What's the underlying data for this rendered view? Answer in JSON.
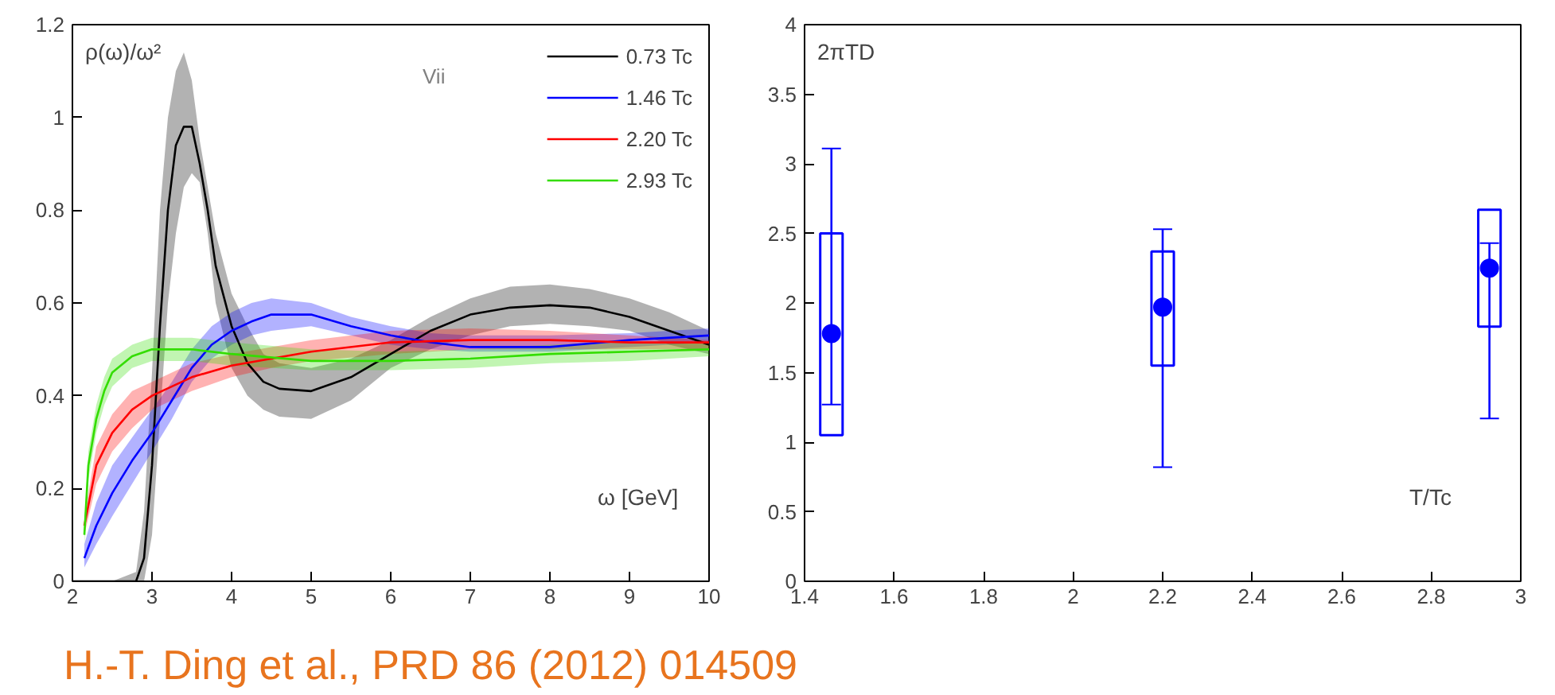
{
  "chart_data": [
    {
      "type": "line",
      "xlabel": "ω [GeV]",
      "ylabel": "ρ(ω)/ω²",
      "annotations": [
        "Vii",
        "H.-T. Ding et al., PRD 86 (2012) 014509"
      ],
      "xlim": [
        2,
        10
      ],
      "ylim": [
        0,
        1.2
      ],
      "xticks": [
        2,
        3,
        4,
        5,
        6,
        7,
        8,
        9,
        10
      ],
      "yticks": [
        0,
        0.2,
        0.4,
        0.6,
        0.8,
        1,
        1.2
      ],
      "legend": "top right",
      "grid": false,
      "series": [
        {
          "name": "0.73 Tc",
          "color": "#000000",
          "x": [
            2.0,
            2.5,
            2.8,
            2.9,
            3.0,
            3.1,
            3.2,
            3.3,
            3.4,
            3.5,
            3.6,
            3.7,
            3.8,
            4.0,
            4.2,
            4.4,
            4.6,
            5.0,
            5.5,
            6.0,
            6.5,
            7.0,
            7.5,
            8.0,
            8.5,
            9.0,
            9.5,
            10
          ],
          "values": [
            0,
            0,
            0,
            0.05,
            0.25,
            0.55,
            0.8,
            0.94,
            0.98,
            0.98,
            0.9,
            0.8,
            0.68,
            0.55,
            0.47,
            0.43,
            0.415,
            0.41,
            0.44,
            0.49,
            0.54,
            0.575,
            0.59,
            0.595,
            0.59,
            0.57,
            0.54,
            0.51
          ],
          "lower": [
            0,
            0,
            0,
            0,
            0.1,
            0.35,
            0.6,
            0.75,
            0.85,
            0.88,
            0.86,
            0.75,
            0.6,
            0.46,
            0.4,
            0.37,
            0.355,
            0.35,
            0.39,
            0.46,
            0.5,
            0.53,
            0.55,
            0.555,
            0.55,
            0.54,
            0.51,
            0.49
          ],
          "upper": [
            0,
            0,
            0.02,
            0.15,
            0.45,
            0.8,
            1.0,
            1.1,
            1.14,
            1.08,
            0.95,
            0.85,
            0.75,
            0.62,
            0.55,
            0.49,
            0.47,
            0.46,
            0.48,
            0.52,
            0.57,
            0.61,
            0.635,
            0.64,
            0.63,
            0.61,
            0.58,
            0.54
          ]
        },
        {
          "name": "1.46 Tc",
          "color": "#0000ff",
          "x": [
            2.15,
            2.3,
            2.5,
            2.75,
            3.0,
            3.25,
            3.5,
            3.75,
            4.0,
            4.25,
            4.5,
            5.0,
            5.5,
            6.0,
            6.5,
            7.0,
            8.0,
            9.0,
            10
          ],
          "values": [
            0.05,
            0.12,
            0.19,
            0.26,
            0.32,
            0.39,
            0.46,
            0.51,
            0.54,
            0.56,
            0.575,
            0.575,
            0.55,
            0.53,
            0.515,
            0.505,
            0.505,
            0.52,
            0.53
          ],
          "lower": [
            0.03,
            0.08,
            0.14,
            0.21,
            0.28,
            0.35,
            0.43,
            0.48,
            0.51,
            0.53,
            0.54,
            0.55,
            0.53,
            0.51,
            0.5,
            0.495,
            0.495,
            0.505,
            0.515
          ],
          "upper": [
            0.08,
            0.17,
            0.25,
            0.31,
            0.37,
            0.43,
            0.5,
            0.55,
            0.58,
            0.6,
            0.61,
            0.6,
            0.57,
            0.55,
            0.535,
            0.53,
            0.53,
            0.535,
            0.545
          ]
        },
        {
          "name": "2.20 Tc",
          "color": "#ff0000",
          "x": [
            2.15,
            2.3,
            2.5,
            2.75,
            3.0,
            3.5,
            4.0,
            4.5,
            5.0,
            6.0,
            7.0,
            8.0,
            9.0,
            10
          ],
          "values": [
            0.12,
            0.25,
            0.32,
            0.37,
            0.4,
            0.44,
            0.465,
            0.48,
            0.495,
            0.515,
            0.52,
            0.52,
            0.515,
            0.515
          ],
          "lower": [
            0.1,
            0.21,
            0.28,
            0.33,
            0.37,
            0.41,
            0.44,
            0.46,
            0.475,
            0.49,
            0.5,
            0.5,
            0.5,
            0.5
          ],
          "upper": [
            0.14,
            0.29,
            0.36,
            0.41,
            0.43,
            0.47,
            0.49,
            0.505,
            0.52,
            0.54,
            0.545,
            0.54,
            0.53,
            0.52
          ]
        },
        {
          "name": "2.93 Tc",
          "color": "#33dd00",
          "x": [
            2.15,
            2.2,
            2.3,
            2.4,
            2.5,
            2.75,
            3.0,
            3.5,
            4.0,
            5.0,
            6.0,
            7.0,
            8.0,
            9.0,
            10
          ],
          "values": [
            0.1,
            0.25,
            0.35,
            0.41,
            0.45,
            0.485,
            0.5,
            0.5,
            0.49,
            0.475,
            0.475,
            0.48,
            0.49,
            0.495,
            0.5
          ],
          "lower": [
            0.08,
            0.22,
            0.32,
            0.38,
            0.42,
            0.46,
            0.475,
            0.475,
            0.465,
            0.455,
            0.455,
            0.46,
            0.47,
            0.475,
            0.485
          ],
          "upper": [
            0.12,
            0.28,
            0.38,
            0.44,
            0.48,
            0.51,
            0.525,
            0.525,
            0.515,
            0.5,
            0.495,
            0.5,
            0.51,
            0.515,
            0.515
          ]
        }
      ]
    },
    {
      "type": "scatter",
      "xlabel": "T/Tc",
      "ylabel": "2πTD",
      "xlim": [
        1.4,
        3
      ],
      "ylim": [
        0,
        4
      ],
      "xticks": [
        1.4,
        1.6,
        1.8,
        2,
        2.2,
        2.4,
        2.6,
        2.8,
        3
      ],
      "yticks": [
        0,
        0.5,
        1,
        1.5,
        2,
        2.5,
        3,
        3.5,
        4
      ],
      "grid": false,
      "marker": "circle",
      "series": [
        {
          "type": "bar",
          "color": "#0000ff",
          "x": [
            1.46,
            2.2,
            2.93
          ],
          "base": [
            1.05,
            1.55,
            1.83
          ],
          "values": [
            1.45,
            0.82,
            0.84
          ]
        },
        {
          "type": "scatter",
          "color": "#0000ff",
          "x": [
            1.46,
            2.2,
            2.93
          ],
          "values": [
            1.78,
            1.97,
            2.25
          ],
          "errors": [
            [
              1.27,
              3.11
            ],
            [
              0.82,
              2.53
            ],
            [
              1.17,
              2.43
            ]
          ]
        }
      ]
    }
  ]
}
